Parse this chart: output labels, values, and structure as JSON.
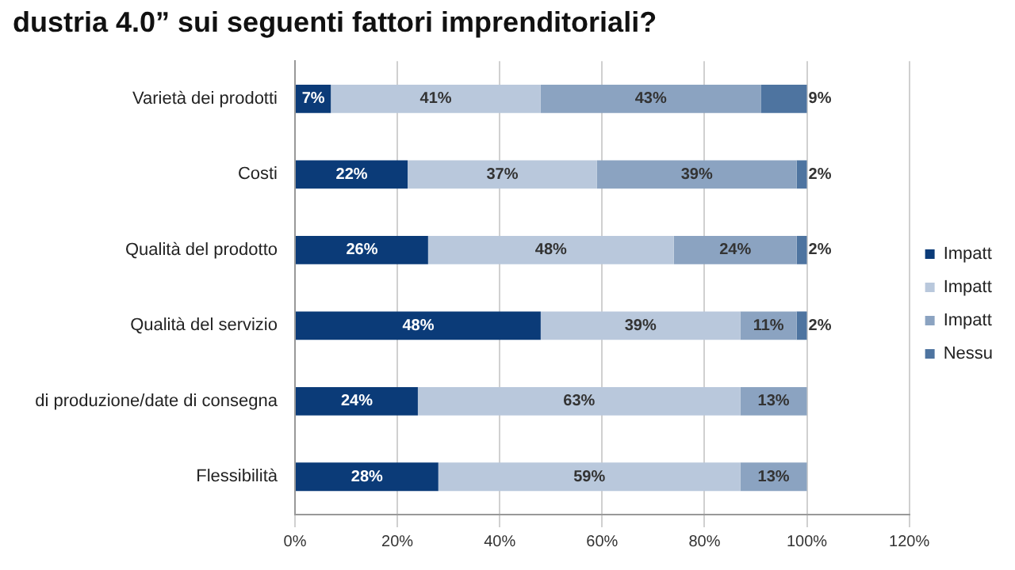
{
  "chart_data": {
    "type": "bar",
    "orientation": "horizontal",
    "stacked": true,
    "title": "dustria 4.0” sui seguenti fattori imprenditoriali?",
    "categories": [
      "Varietà dei prodotti",
      "Costi",
      "Qualità del prodotto",
      "Qualità del servizio",
      "di produzione/date di consegna",
      "Flessibilità"
    ],
    "series": [
      {
        "name": "Impatt",
        "color": "#0b3b78",
        "values": [
          7,
          22,
          26,
          48,
          24,
          28
        ],
        "value_labels": [
          "7%",
          "22%",
          "26%",
          "48%",
          "24%",
          "28%"
        ]
      },
      {
        "name": "Impatt",
        "color": "#b9c8dc",
        "values": [
          41,
          37,
          48,
          39,
          63,
          59
        ],
        "value_labels": [
          "41%",
          "37%",
          "48%",
          "39%",
          "63%",
          "59%"
        ]
      },
      {
        "name": "Impatt",
        "color": "#8ba3c1",
        "values": [
          43,
          39,
          24,
          11,
          13,
          13
        ],
        "value_labels": [
          "43%",
          "39%",
          "24%",
          "11%",
          "13%",
          "13%"
        ]
      },
      {
        "name": "Nessu",
        "color": "#4e74a0",
        "values": [
          9,
          2,
          2,
          2,
          null,
          null
        ],
        "value_labels": [
          "9%",
          "2%",
          "2%",
          "2%",
          null,
          null
        ]
      }
    ],
    "xlim": [
      0,
      120
    ],
    "xticks": [
      {
        "value": 0,
        "label": "0%"
      },
      {
        "value": 20,
        "label": "20%"
      },
      {
        "value": 40,
        "label": "40%"
      },
      {
        "value": 60,
        "label": "60%"
      },
      {
        "value": 80,
        "label": "80%"
      },
      {
        "value": 100,
        "label": "100%"
      },
      {
        "value": 120,
        "label": "120%"
      }
    ],
    "grid": "x",
    "legend": "right"
  }
}
